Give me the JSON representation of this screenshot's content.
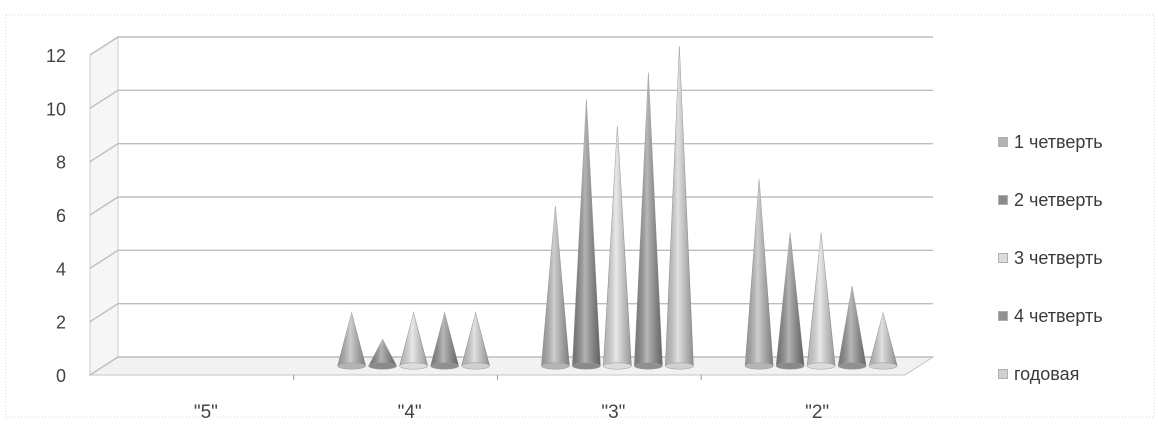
{
  "chart_data": {
    "type": "bar",
    "subtype": "3d-cone-clustered",
    "categories": [
      "\"5\"",
      "\"4\"",
      "\"3\"",
      "\"2\""
    ],
    "series": [
      {
        "name": "1 четверть",
        "values": [
          0,
          2,
          6,
          7
        ],
        "color": "#b4b4b4"
      },
      {
        "name": "2 четверть",
        "values": [
          0,
          1,
          10,
          5
        ],
        "color": "#8a8a8a"
      },
      {
        "name": "3 четверть",
        "values": [
          0,
          2,
          9,
          5
        ],
        "color": "#dcdcdc"
      },
      {
        "name": "4 четверть",
        "values": [
          0,
          2,
          11,
          3
        ],
        "color": "#909090"
      },
      {
        "name": "годовая",
        "values": [
          0,
          2,
          12,
          2
        ],
        "color": "#d0d0d0"
      }
    ],
    "yticks": [
      "0",
      "2",
      "4",
      "6",
      "8",
      "10",
      "12"
    ],
    "ylim": [
      0,
      12
    ],
    "grid": true,
    "legend_position": "right",
    "title": "",
    "xlabel": "",
    "ylabel": ""
  }
}
